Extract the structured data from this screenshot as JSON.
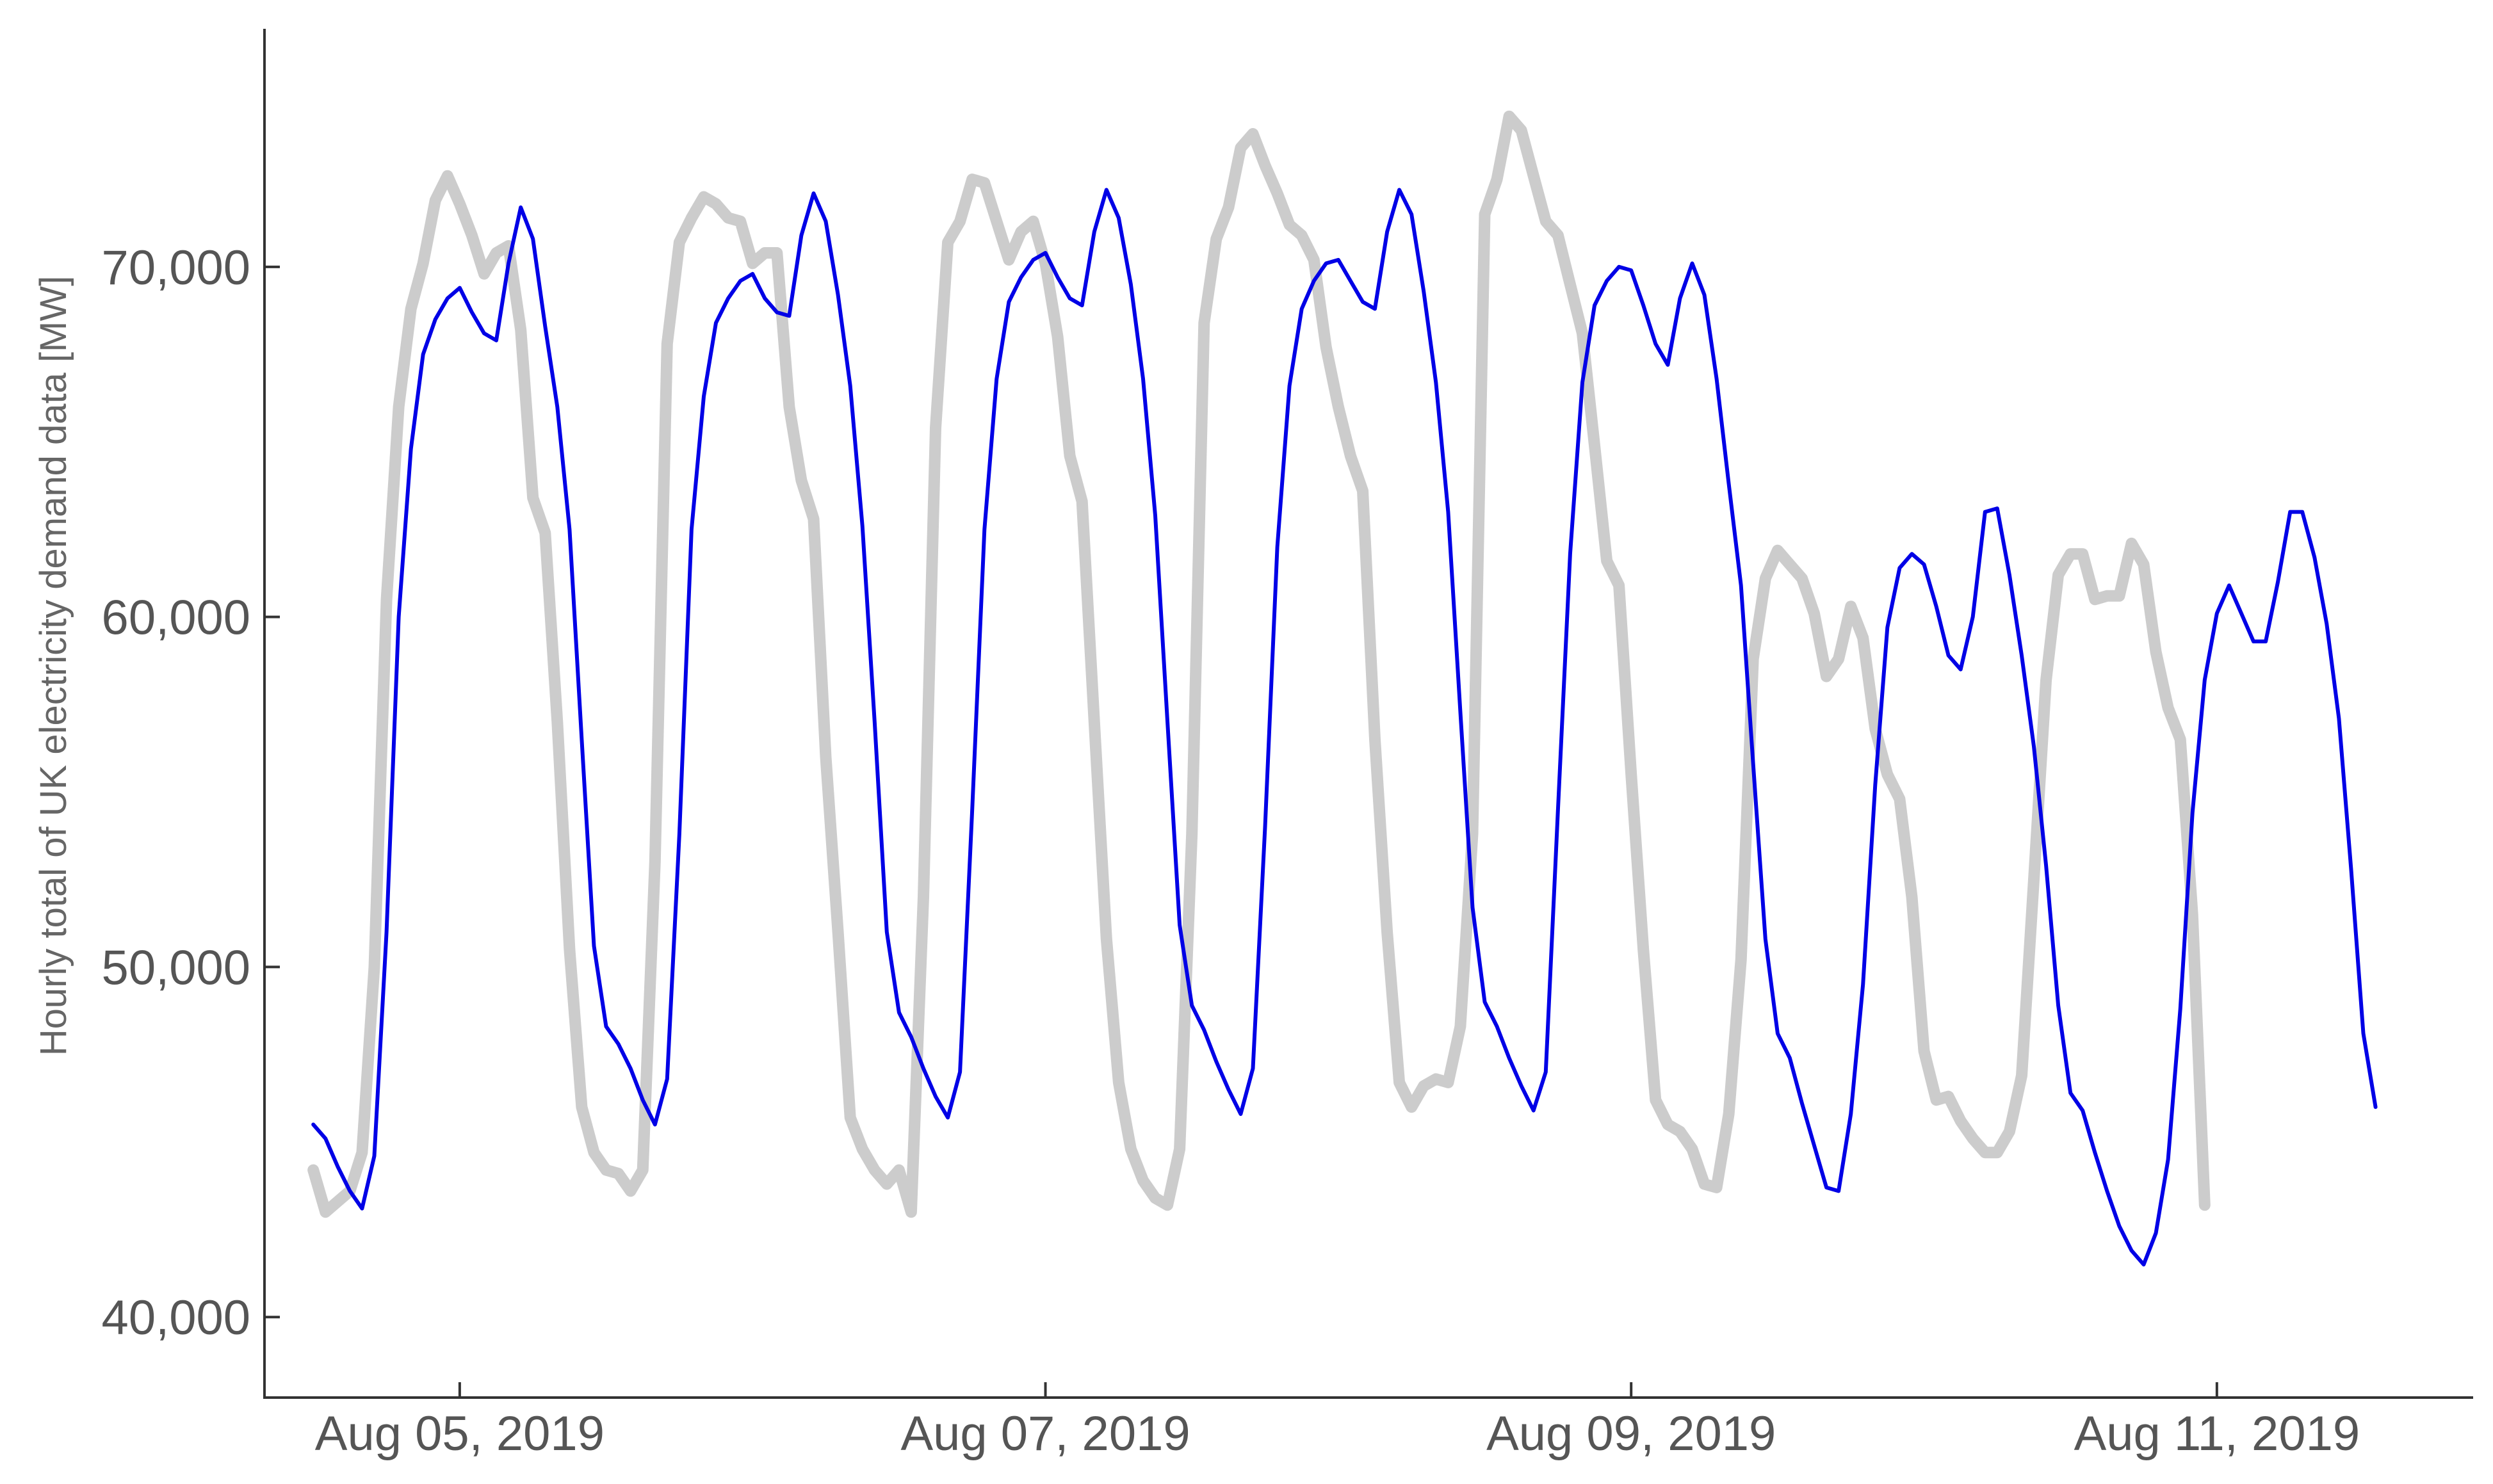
{
  "chart_data": {
    "type": "line",
    "ylabel": "Hourly total of UK electricity demand data [MW]",
    "xlabel": "",
    "title": "",
    "x_start": "Aug 04, 2019 12:00",
    "x_interval": "1 hour",
    "xlim": [
      "Aug 04, 2019 08:00",
      "Aug 11, 2019 21:00"
    ],
    "ylim": [
      37700,
      76800
    ],
    "x_ticks": [
      "Aug 05, 2019",
      "Aug 07, 2019",
      "Aug 09, 2019",
      "Aug 11, 2019"
    ],
    "y_ticks": [
      40000,
      50000,
      60000,
      70000
    ],
    "y_tick_labels": [
      "40,000",
      "50,000",
      "60,000",
      "70,000"
    ],
    "grid": false,
    "series": [
      {
        "color": "#cccccc",
        "values": [
          44200,
          43000,
          43300,
          43600,
          44700,
          50000,
          60500,
          66000,
          68800,
          70100,
          71900,
          72600,
          71800,
          70900,
          69800,
          70400,
          70600,
          68200,
          63400,
          62400,
          57000,
          50500,
          46000,
          44700,
          44200,
          44100,
          43600,
          44200,
          53000,
          67800,
          70700,
          71400,
          72000,
          71800,
          71400,
          71300,
          70100,
          70400,
          70400,
          66000,
          63900,
          62800,
          56000,
          51000,
          45700,
          44800,
          44200,
          43800,
          44200,
          43000,
          52000,
          65400,
          70700,
          71300,
          72500,
          72400,
          71300,
          70200,
          71000,
          71300,
          70100,
          68000,
          64600,
          63300,
          57000,
          50800,
          46700,
          44800,
          43900,
          43400,
          43200,
          44800,
          53800,
          68400,
          70800,
          71700,
          73400,
          73800,
          72900,
          72100,
          71200,
          70900,
          70200,
          67700,
          66000,
          64600,
          63600,
          56500,
          51000,
          46700,
          46000,
          46600,
          46800,
          46700,
          48300,
          53800,
          71500,
          72500,
          74300,
          73900,
          72600,
          71300,
          70900,
          69500,
          68100,
          64900,
          61600,
          60900,
          55500,
          50500,
          46200,
          45500,
          45300,
          44800,
          43800,
          43700,
          45800,
          50200,
          58800,
          61100,
          61900,
          61500,
          61100,
          60100,
          58300,
          58800,
          60300,
          59400,
          56800,
          55500,
          54800,
          52000,
          47600,
          46200,
          46300,
          45600,
          45100,
          44700,
          44700,
          45300,
          46900,
          52500,
          58200,
          61200,
          61800,
          61800,
          60500,
          60600,
          60600,
          62100,
          61500,
          59000,
          57400,
          56500,
          51500,
          43200
        ]
      },
      {
        "color": "#0000e6",
        "values": [
          45500,
          45100,
          44300,
          43600,
          43100,
          44600,
          51000,
          60000,
          64800,
          67500,
          68500,
          69100,
          69400,
          68700,
          68100,
          67900,
          70100,
          71700,
          70800,
          68300,
          66000,
          62500,
          56500,
          50600,
          48300,
          47800,
          47100,
          46200,
          45500,
          46800,
          53800,
          62500,
          66300,
          68400,
          69100,
          69600,
          69800,
          69100,
          68700,
          68600,
          70900,
          72100,
          71300,
          69200,
          66600,
          62600,
          57000,
          51000,
          48700,
          48000,
          47100,
          46300,
          45700,
          47000,
          54500,
          62500,
          66800,
          69000,
          69700,
          70200,
          70400,
          69700,
          69100,
          68900,
          71000,
          72200,
          71400,
          69500,
          66800,
          62900,
          57000,
          51200,
          48900,
          48200,
          47300,
          46500,
          45800,
          47100,
          54000,
          62000,
          66600,
          68800,
          69600,
          70100,
          70200,
          69600,
          69000,
          68800,
          71000,
          72200,
          71500,
          69300,
          66700,
          63000,
          57300,
          51700,
          49000,
          48300,
          47400,
          46600,
          45900,
          47000,
          54500,
          61800,
          66700,
          68900,
          69600,
          70000,
          69900,
          68900,
          67800,
          67200,
          69100,
          70100,
          69200,
          66800,
          63800,
          60900,
          55800,
          50800,
          48100,
          47400,
          46100,
          44900,
          43700,
          43600,
          45800,
          49500,
          55200,
          59700,
          61400,
          61800,
          61500,
          60300,
          58900,
          58500,
          60000,
          63000,
          63100,
          61200,
          58900,
          56300,
          52900,
          48900,
          46400,
          45900,
          44700,
          43600,
          42600,
          41900,
          41500,
          42400,
          44500,
          48800,
          54400,
          58200,
          60100,
          60900,
          60100,
          59300,
          59300,
          61000,
          63000,
          63000,
          61700,
          59800,
          57100,
          52800,
          48100,
          46000
        ]
      }
    ]
  }
}
